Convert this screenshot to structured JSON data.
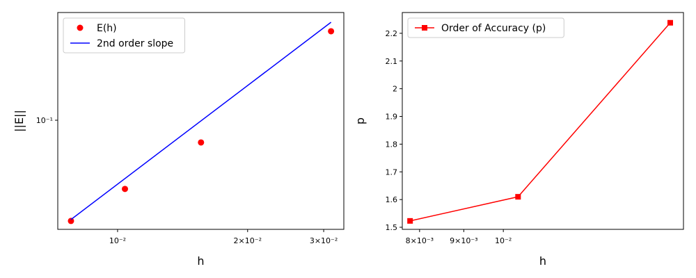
{
  "chart_data": [
    {
      "type": "line",
      "xlabel": "h",
      "ylabel": "||E||",
      "xscale": "log",
      "yscale": "log",
      "xlim": [
        0.00727,
        0.0334
      ],
      "ylim": [
        0.0216,
        0.454
      ],
      "xticks": [
        {
          "value": 0.01,
          "label": "10⁻²"
        },
        {
          "value": 0.02,
          "label": "2×10⁻²"
        },
        {
          "value": 0.03,
          "label": "3×10⁻²"
        }
      ],
      "yticks": [
        {
          "value": 0.1,
          "label": "10⁻¹"
        }
      ],
      "legend": "upper left",
      "series": [
        {
          "name": "E(h)",
          "color": "#ff0000",
          "style": "markers",
          "marker": "circle",
          "x": [
            0.0078,
            0.0104,
            0.0156,
            0.0312
          ],
          "values": [
            0.0243,
            0.0381,
            0.0732,
            0.349
          ]
        },
        {
          "name": "2nd order slope",
          "color": "#0000ff",
          "style": "line",
          "x": [
            0.0078,
            0.0312
          ],
          "values": [
            0.0248,
            0.396
          ]
        }
      ]
    },
    {
      "type": "line",
      "xlabel": "h",
      "ylabel": "p",
      "xscale": "log",
      "yscale": "linear",
      "xlim": [
        0.00764,
        0.01616
      ],
      "ylim": [
        1.4925,
        2.275
      ],
      "xticks": [
        {
          "value": 0.008,
          "label": "8×10⁻³"
        },
        {
          "value": 0.009,
          "label": "9×10⁻³"
        },
        {
          "value": 0.01,
          "label": "10⁻²"
        }
      ],
      "yticks": [
        1.5,
        1.6,
        1.7,
        1.8,
        1.9,
        2.0,
        2.1,
        2.2
      ],
      "legend": "upper left",
      "series": [
        {
          "name": "Order of Accuracy (p)",
          "color": "#ff0000",
          "style": "line+markers",
          "marker": "square",
          "x": [
            0.0078,
            0.0104,
            0.0156
          ],
          "values": [
            1.523,
            1.61,
            2.238
          ]
        }
      ]
    }
  ]
}
